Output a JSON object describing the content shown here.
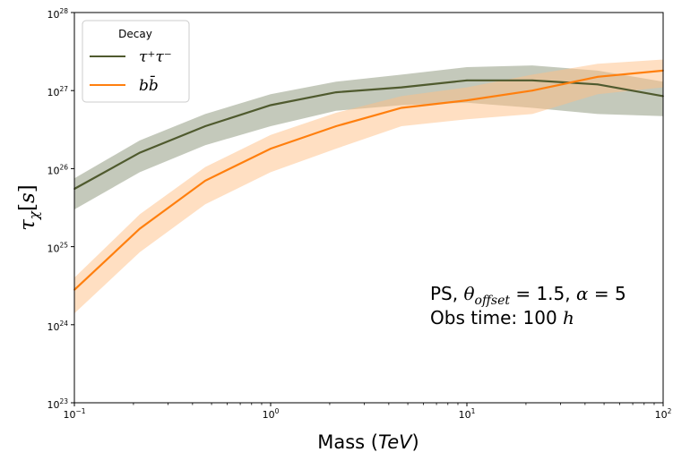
{
  "chart_data": {
    "type": "line",
    "title": "",
    "xlabel": {
      "prefix": "Mass (",
      "var": "TeV",
      "suffix": ")"
    },
    "ylabel": {
      "base": "τ",
      "sub": "χ",
      "post": "[",
      "unit": "s",
      "close": "]"
    },
    "xscale": "log",
    "yscale": "log",
    "xlim": [
      0.1,
      100
    ],
    "ylim": [
      1e+23,
      1e+28
    ],
    "grid": false,
    "legend_position": "top-left",
    "x_ticks": [
      {
        "value": 0.1,
        "base": "10",
        "exp": "−1"
      },
      {
        "value": 1,
        "base": "10",
        "exp": "0"
      },
      {
        "value": 10,
        "base": "10",
        "exp": "1"
      },
      {
        "value": 100,
        "base": "10",
        "exp": "2"
      }
    ],
    "y_ticks": [
      {
        "value": 1e+23,
        "base": "10",
        "exp": "23"
      },
      {
        "value": 1e+24,
        "base": "10",
        "exp": "24"
      },
      {
        "value": 1e+25,
        "base": "10",
        "exp": "25"
      },
      {
        "value": 1e+26,
        "base": "10",
        "exp": "26"
      },
      {
        "value": 1e+27,
        "base": "10",
        "exp": "27"
      },
      {
        "value": 1e+28,
        "base": "10",
        "exp": "28"
      }
    ],
    "legend": {
      "title": "Decay"
    },
    "series": [
      {
        "name": "τ⁺τ⁻",
        "color": "#4f5a2e",
        "band_color": "#8a9478",
        "x": [
          0.1,
          0.2154,
          0.4642,
          1,
          2.154,
          4.642,
          10,
          21.54,
          46.42,
          100
        ],
        "y": [
          5.5e+25,
          1.6e+26,
          3.5e+26,
          6.5e+26,
          9.5e+26,
          1.1e+27,
          1.35e+27,
          1.35e+27,
          1.2e+27,
          8.5e+26
        ],
        "y_low": [
          3e+25,
          9e+25,
          2e+26,
          3.5e+26,
          5.5e+26,
          6.5e+26,
          7e+26,
          6e+26,
          5e+26,
          4.7e+26
        ],
        "y_high": [
          7.5e+25,
          2.3e+26,
          5e+26,
          9e+26,
          1.3e+27,
          1.6e+27,
          2e+27,
          2.1e+27,
          1.8e+27,
          1.3e+27
        ]
      },
      {
        "name": "bb̄",
        "color": "#ff7f0e",
        "band_color": "#ffbf86",
        "x": [
          0.1,
          0.2154,
          0.4642,
          1,
          2.154,
          4.642,
          10,
          21.54,
          46.42,
          100
        ],
        "y": [
          2.8e+24,
          1.7e+25,
          7e+25,
          1.8e+26,
          3.5e+26,
          6e+26,
          7.5e+26,
          1e+27,
          1.5e+27,
          1.8e+27
        ],
        "y_low": [
          1.4e+24,
          8.5e+24,
          3.5e+25,
          9e+25,
          1.8e+26,
          3.5e+26,
          4.3e+26,
          5e+26,
          9e+26,
          1.1e+27
        ],
        "y_high": [
          4e+24,
          2.6e+25,
          1.05e+26,
          2.7e+26,
          5.2e+26,
          8.5e+26,
          1.1e+27,
          1.6e+27,
          2.2e+27,
          2.5e+27
        ]
      }
    ],
    "annotations": {
      "line1": {
        "a": "PS, ",
        "theta": "θ",
        "sub": "offset",
        "b": " = 1.5,  ",
        "alpha": "α",
        "c": " = 5"
      },
      "line2": {
        "a": "Obs time: 100 ",
        "h": "h"
      }
    }
  }
}
